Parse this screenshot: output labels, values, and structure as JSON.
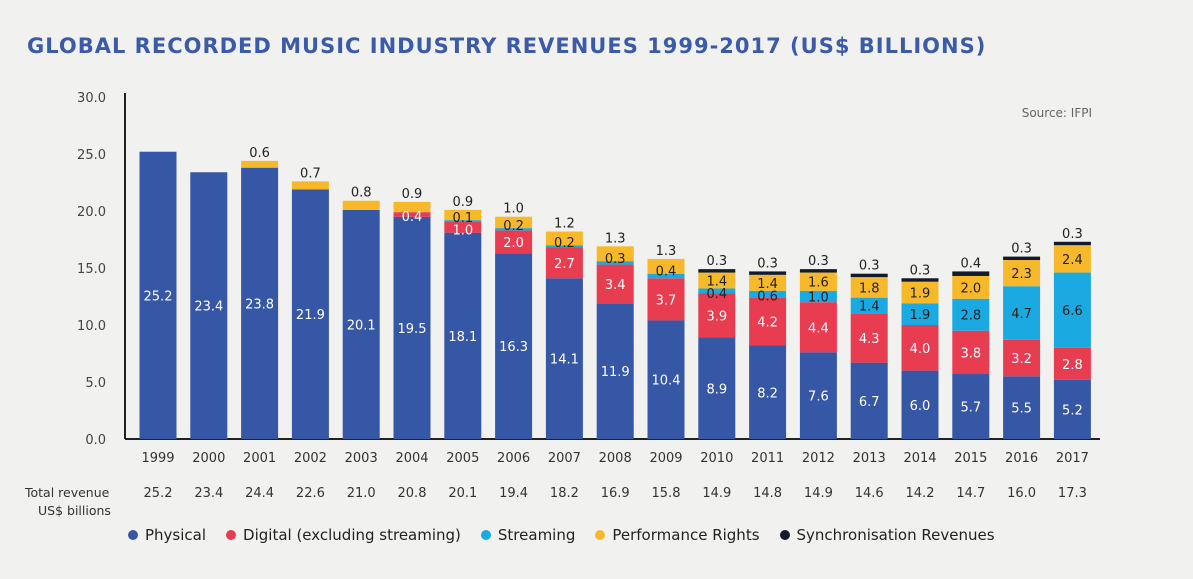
{
  "chart_data": {
    "type": "bar",
    "stacked": true,
    "title": "GLOBAL RECORDED MUSIC INDUSTRY REVENUES 1999-2017 (US$ BILLIONS)",
    "source": "Source: IFPI",
    "categories": [
      "1999",
      "2000",
      "2001",
      "2002",
      "2003",
      "2004",
      "2005",
      "2006",
      "2007",
      "2008",
      "2009",
      "2010",
      "2011",
      "2012",
      "2013",
      "2014",
      "2015",
      "2016",
      "2017"
    ],
    "series": [
      {
        "name": "Physical",
        "color": "#3656a6",
        "values": [
          25.2,
          23.4,
          23.8,
          21.9,
          20.1,
          19.5,
          18.1,
          16.3,
          14.1,
          11.9,
          10.4,
          8.9,
          8.2,
          7.6,
          6.7,
          6.0,
          5.7,
          5.5,
          5.2
        ]
      },
      {
        "name": "Digital (excluding streaming)",
        "color": "#e83c50",
        "values": [
          null,
          null,
          null,
          null,
          null,
          0.4,
          1.0,
          2.0,
          2.7,
          3.4,
          3.7,
          3.9,
          4.2,
          4.4,
          4.3,
          4.0,
          3.8,
          3.2,
          2.8
        ]
      },
      {
        "name": "Streaming",
        "color": "#1aa9e0",
        "values": [
          null,
          null,
          null,
          null,
          null,
          null,
          0.1,
          0.2,
          0.2,
          0.3,
          0.4,
          0.4,
          0.6,
          1.0,
          1.4,
          1.9,
          2.8,
          4.7,
          6.6
        ]
      },
      {
        "name": "Performance Rights",
        "color": "#f7b92a",
        "values": [
          null,
          null,
          0.6,
          0.7,
          0.8,
          0.9,
          0.9,
          1.0,
          1.2,
          1.3,
          1.3,
          1.4,
          1.4,
          1.6,
          1.8,
          1.9,
          2.0,
          2.3,
          2.4
        ]
      },
      {
        "name": "Synchronisation Revenues",
        "color": "#131a2e",
        "values": [
          null,
          null,
          null,
          null,
          null,
          null,
          null,
          null,
          null,
          null,
          null,
          0.3,
          0.3,
          0.3,
          0.3,
          0.3,
          0.4,
          0.3,
          0.3
        ]
      }
    ],
    "yticks": [
      "0.0",
      "5.0",
      "10.0",
      "15.0",
      "20.0",
      "25.0",
      "30.0"
    ],
    "ylim": [
      0,
      30
    ],
    "totals_label": [
      "Total revenue",
      "US$ billions"
    ],
    "totals": [
      "25.2",
      "23.4",
      "24.4",
      "22.6",
      "21.0",
      "20.8",
      "20.1",
      "19.4",
      "18.2",
      "16.9",
      "15.8",
      "14.9",
      "14.8",
      "14.9",
      "14.6",
      "14.2",
      "14.7",
      "16.0",
      "17.3"
    ],
    "legend_position": "bottom",
    "grid": false
  }
}
